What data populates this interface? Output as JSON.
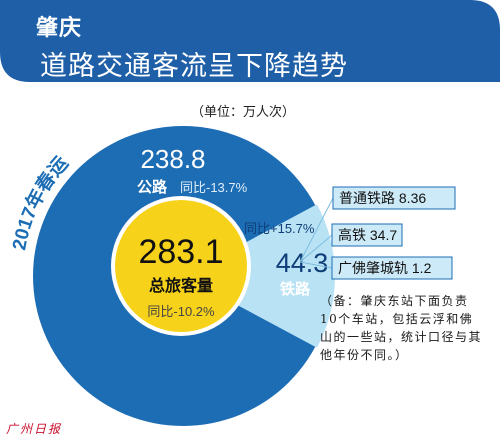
{
  "banner": {
    "city": "肇庆",
    "title": "道路交通客流呈下降趋势"
  },
  "unit_label": "（单位：万人次）",
  "season_label": "2017年春运",
  "colors": {
    "banner": "#1e5fa8",
    "outer_ring": "#1d6db5",
    "rail_wedge": "#b9e3f5",
    "center": "#f7d21b",
    "rail_box_bg": "#cdeaf8",
    "box_border": "#1d6db5",
    "arc_text": "#1d6db5"
  },
  "chart_data": {
    "type": "pie",
    "total": {
      "value": "283.1",
      "label": "总旅客量",
      "yoy": "同比-10.2%"
    },
    "segments": [
      {
        "name": "公路",
        "value": 238.8,
        "value_text": "238.8",
        "yoy": "同比-13.7%"
      },
      {
        "name": "铁路",
        "value": 44.3,
        "value_text": "44.3",
        "yoy": "同比+15.7%"
      }
    ],
    "rail_breakdown": [
      {
        "name": "普通铁路",
        "value": 8.36,
        "value_text": "8.36"
      },
      {
        "name": "高铁",
        "value": 34.7,
        "value_text": "34.7"
      },
      {
        "name": "广佛肇城轨",
        "value": 1.2,
        "value_text": "1.2"
      }
    ]
  },
  "note": "（备：肇庆东站下面负责10个车站，包括云浮和佛山的一些站，统计口径与其他年份不同。）",
  "masthead": "广州日报"
}
